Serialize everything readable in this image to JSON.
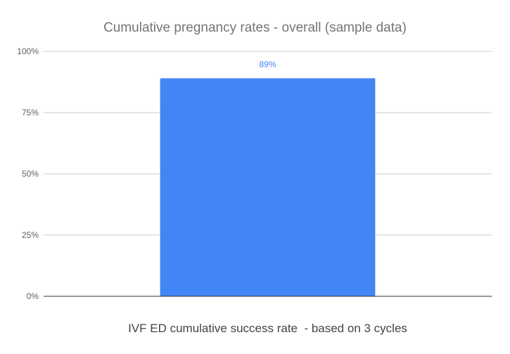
{
  "chart_data": {
    "type": "bar",
    "title": "Cumulative pregnancy rates - overall (sample data)",
    "categories": [
      "IVF ED cumulative success rate  - based on 3 cycles"
    ],
    "values": [
      89
    ],
    "data_labels": [
      "89%"
    ],
    "ylim": [
      0,
      100
    ],
    "yticks": [
      0,
      25,
      50,
      75,
      100
    ],
    "ytick_labels": [
      "0%",
      "25%",
      "50%",
      "75%",
      "100%"
    ],
    "grid": true,
    "legend": "none",
    "colors": {
      "bar": "#4285f4",
      "data_label": "#4285f4",
      "gridline": "#cccccc",
      "baseline": "#333333"
    }
  }
}
